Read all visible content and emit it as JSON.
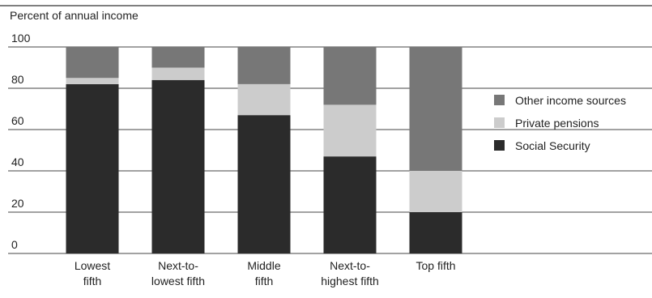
{
  "chart_data": {
    "type": "bar",
    "stacked": true,
    "title": "",
    "ylabel": "Percent of annual income",
    "xlabel": "",
    "ylim": [
      0,
      100
    ],
    "yticks": [
      0,
      20,
      40,
      60,
      80,
      100
    ],
    "grid": true,
    "legend_placement": "right",
    "categories": [
      [
        "Lowest",
        "fifth"
      ],
      [
        "Next-to-",
        "lowest fifth"
      ],
      [
        "Middle",
        "fifth"
      ],
      [
        "Next-to-",
        "highest fifth"
      ],
      [
        "Top fifth"
      ]
    ],
    "series": [
      {
        "name": "Social Security",
        "color": "#2b2b2b",
        "values": [
          82,
          84,
          67,
          47,
          20
        ]
      },
      {
        "name": "Private pensions",
        "color": "#cccccc",
        "values": [
          3,
          6,
          15,
          25,
          20
        ]
      },
      {
        "name": "Other income sources",
        "color": "#777777",
        "values": [
          15,
          10,
          18,
          28,
          60
        ]
      }
    ],
    "legend_order": [
      "Other income sources",
      "Private pensions",
      "Social Security"
    ]
  }
}
